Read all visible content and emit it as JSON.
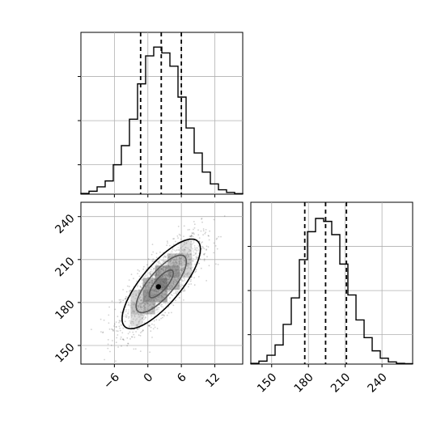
{
  "figure": {
    "type": "corner-plot"
  },
  "chart_data": [
    {
      "type": "histogram",
      "panel": "top-left",
      "xlim": [
        -12,
        17
      ],
      "ylim": [
        0,
        1.1
      ],
      "grid": true,
      "bins": [
        -12,
        -10.55,
        -9.1,
        -7.65,
        -6.2,
        -4.75,
        -3.3,
        -1.85,
        -0.4,
        1.05,
        2.5,
        3.95,
        5.4,
        6.85,
        8.3,
        9.75,
        11.2,
        12.65,
        14.1,
        15.55,
        17
      ],
      "values": [
        0.005,
        0.02,
        0.05,
        0.09,
        0.2,
        0.33,
        0.51,
        0.75,
        0.94,
        1.0,
        0.96,
        0.87,
        0.66,
        0.45,
        0.28,
        0.15,
        0.07,
        0.03,
        0.012,
        0.004
      ],
      "quantiles": [
        -1.3,
        2.4,
        6.0
      ],
      "tick_labels": [
        "",
        "",
        ""
      ]
    },
    {
      "type": "scatter-density",
      "panel": "bottom-left",
      "xlim": [
        -12,
        17
      ],
      "ylim": [
        137,
        250
      ],
      "grid": true,
      "x_ticks": [
        -6,
        0,
        6,
        12
      ],
      "x_tick_labels": [
        "−6",
        "0",
        "6",
        "12"
      ],
      "y_ticks": [
        150,
        180,
        210,
        240
      ],
      "y_tick_labels": [
        "150",
        "180",
        "210",
        "240"
      ],
      "center": [
        2.4,
        193
      ],
      "contour_levels": [
        "inner",
        "middle",
        "outer"
      ],
      "density_grid_color": "#000000"
    },
    {
      "type": "histogram",
      "panel": "bottom-right",
      "xlim": [
        133,
        265
      ],
      "ylim": [
        0,
        1.1
      ],
      "grid": true,
      "bins": [
        133,
        139.6,
        146.2,
        152.8,
        159.4,
        166,
        172.6,
        179.2,
        185.8,
        192.4,
        199,
        205.6,
        212.2,
        218.8,
        225.4,
        232,
        238.6,
        245.2,
        251.8,
        258.4,
        265
      ],
      "values": [
        0.005,
        0.02,
        0.06,
        0.13,
        0.27,
        0.45,
        0.71,
        0.9,
        0.99,
        0.97,
        0.88,
        0.68,
        0.47,
        0.3,
        0.18,
        0.09,
        0.04,
        0.015,
        0.005,
        0.003
      ],
      "quantiles": [
        177,
        194,
        211
      ],
      "x_ticks": [
        150,
        180,
        210,
        240
      ],
      "x_tick_labels": [
        "150",
        "180",
        "210",
        "240"
      ],
      "tick_labels_y": [
        "",
        "",
        ""
      ]
    }
  ]
}
